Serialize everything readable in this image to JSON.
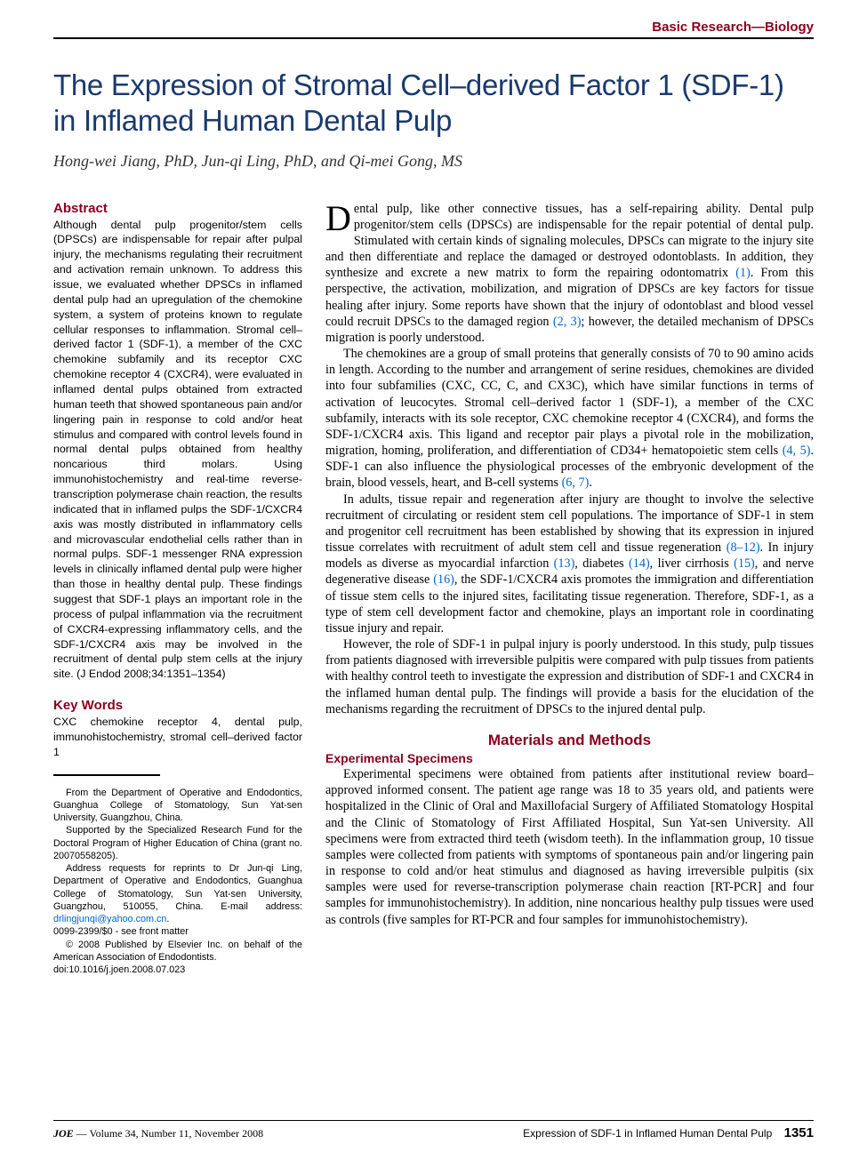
{
  "header": {
    "section_label": "Basic Research—Biology",
    "color": "#8b0020"
  },
  "title": "The Expression of Stromal Cell–derived Factor 1 (SDF-1) in Inflamed Human Dental Pulp",
  "title_color": "#1a3a6e",
  "authors": "Hong-wei Jiang, PhD, Jun-qi Ling, PhD, and Qi-mei Gong, MS",
  "abstract": {
    "heading": "Abstract",
    "text": "Although dental pulp progenitor/stem cells (DPSCs) are indispensable for repair after pulpal injury, the mechanisms regulating their recruitment and activation remain unknown. To address this issue, we evaluated whether DPSCs in inflamed dental pulp had an upregulation of the chemokine system, a system of proteins known to regulate cellular responses to inflammation. Stromal cell–derived factor 1 (SDF-1), a member of the CXC chemokine subfamily and its receptor CXC chemokine receptor 4 (CXCR4), were evaluated in inflamed dental pulps obtained from extracted human teeth that showed spontaneous pain and/or lingering pain in response to cold and/or heat stimulus and compared with control levels found in normal dental pulps obtained from healthy noncarious third molars. Using immunohistochemistry and real-time reverse-transcription polymerase chain reaction, the results indicated that in inflamed pulps the SDF-1/CXCR4 axis was mostly distributed in inflammatory cells and microvascular endothelial cells rather than in normal pulps. SDF-1 messenger RNA expression levels in clinically inflamed dental pulp were higher than those in healthy dental pulp. These findings suggest that SDF-1 plays an important role in the process of pulpal inflammation via the recruitment of CXCR4-expressing inflammatory cells, and the SDF-1/CXCR4 axis may be involved in the recruitment of dental pulp stem cells at the injury site. (J Endod 2008;34:1351–1354)"
  },
  "keywords": {
    "heading": "Key Words",
    "text": "CXC chemokine receptor 4, dental pulp, immunohistochemistry, stromal cell–derived factor 1"
  },
  "footnote": {
    "affiliation": "From the Department of Operative and Endodontics, Guanghua College of Stomatology, Sun Yat-sen University, Guangzhou, China.",
    "support": "Supported by the Specialized Research Fund for the Doctoral Program of Higher Education of China (grant no. 20070558205).",
    "reprints_pre": "Address requests for reprints to Dr Jun-qi Ling, Department of Operative and Endodontics, Guanghua College of Stomatology, Sun Yat-sen University, Guangzhou, 510055, China. E-mail address: ",
    "email": "drlingjunqi@yahoo.com.cn",
    "reprints_post": ".",
    "issn": "0099-2399/$0 - see front matter",
    "copyright": "© 2008 Published by Elsevier Inc. on behalf of the American Association of Endodontists.",
    "doi": "doi:10.1016/j.joen.2008.07.023"
  },
  "body": {
    "p1_dropcap": "D",
    "p1": "ental pulp, like other connective tissues, has a self-repairing ability. Dental pulp progenitor/stem cells (DPSCs) are indispensable for the repair potential of dental pulp. Stimulated with certain kinds of signaling molecules, DPSCs can migrate to the injury site and then differentiate and replace the damaged or destroyed odontoblasts. In addition, they synthesize and excrete a new matrix to form the repairing odontomatrix ",
    "p1_ref1": "(1)",
    "p1_cont": ". From this perspective, the activation, mobilization, and migration of DPSCs are key factors for tissue healing after injury. Some reports have shown that the injury of odontoblast and blood vessel could recruit DPSCs to the damaged region ",
    "p1_ref2": "(2, 3)",
    "p1_end": "; however, the detailed mechanism of DPSCs migration is poorly understood.",
    "p2_a": "The chemokines are a group of small proteins that generally consists of 70 to 90 amino acids in length. According to the number and arrangement of serine residues, chemokines are divided into four subfamilies (CXC, CC, C, and CX3C), which have similar functions in terms of activation of leucocytes. Stromal cell–derived factor 1 (SDF-1), a member of the CXC subfamily, interacts with its sole receptor, CXC chemokine receptor 4 (CXCR4), and forms the SDF-1/CXCR4 axis. This ligand and receptor pair plays a pivotal role in the mobilization, migration, homing, proliferation, and differentiation of CD34+ hematopoietic stem cells ",
    "p2_ref1": "(4, 5)",
    "p2_b": ". SDF-1 can also influence the physiological processes of the embryonic development of the brain, blood vessels, heart, and B-cell systems ",
    "p2_ref2": "(6, 7)",
    "p2_c": ".",
    "p3_a": "In adults, tissue repair and regeneration after injury are thought to involve the selective recruitment of circulating or resident stem cell populations. The importance of SDF-1 in stem and progenitor cell recruitment has been established by showing that its expression in injured tissue correlates with recruitment of adult stem cell and tissue regeneration ",
    "p3_ref1": "(8–12)",
    "p3_b": ". In injury models as diverse as myocardial infarction ",
    "p3_ref2": "(13)",
    "p3_c": ", diabetes ",
    "p3_ref3": "(14)",
    "p3_d": ", liver cirrhosis ",
    "p3_ref4": "(15)",
    "p3_e": ", and nerve degenerative disease ",
    "p3_ref5": "(16)",
    "p3_f": ", the SDF-1/CXCR4 axis promotes the immigration and differentiation of tissue stem cells to the injured sites, facilitating tissue regeneration. Therefore, SDF-1, as a type of stem cell development factor and chemokine, plays an important role in coordinating tissue injury and repair.",
    "p4": "However, the role of SDF-1 in pulpal injury is poorly understood. In this study, pulp tissues from patients diagnosed with irreversible pulpitis were compared with pulp tissues from patients with healthy control teeth to investigate the expression and distribution of SDF-1 and CXCR4 in the inflamed human dental pulp. The findings will provide a basis for the elucidation of the mechanisms regarding the recruitment of DPSCs to the injured dental pulp."
  },
  "methods": {
    "heading": "Materials and Methods",
    "sub1": "Experimental Specimens",
    "sub1_text": "Experimental specimens were obtained from patients after institutional review board–approved informed consent. The patient age range was 18 to 35 years old, and patients were hospitalized in the Clinic of Oral and Maxillofacial Surgery of Affiliated Stomatology Hospital and the Clinic of Stomatology of First Affiliated Hospital, Sun Yat-sen University. All specimens were from extracted third teeth (wisdom teeth). In the inflammation group, 10 tissue samples were collected from patients with symptoms of spontaneous pain and/or lingering pain in response to cold and/or heat stimulus and diagnosed as having irreversible pulpitis (six samples were used for reverse-transcription polymerase chain reaction [RT-PCR] and four samples for immunohistochemistry). In addition, nine noncarious healthy pulp tissues were used as controls (five samples for RT-PCR and four samples for immunohistochemistry)."
  },
  "footer": {
    "journal": "JOE",
    "issue": " — Volume 34, Number 11, November 2008",
    "running_head": "Expression of SDF-1 in Inflamed Human Dental Pulp",
    "page": "1351"
  }
}
